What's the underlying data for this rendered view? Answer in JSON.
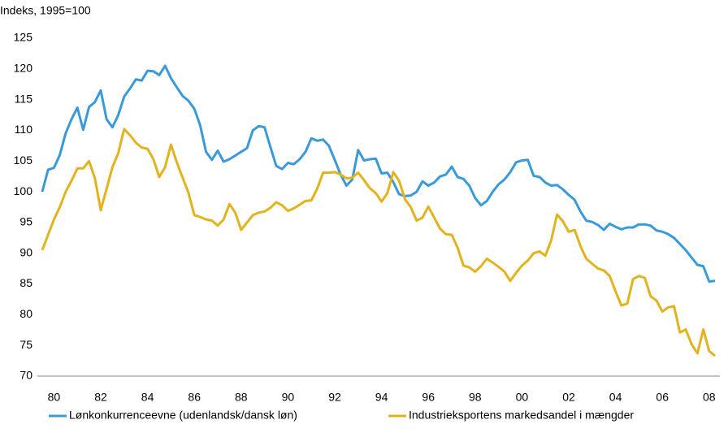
{
  "chart_data": {
    "type": "line",
    "title": "Indeks, 1995=100",
    "categories": [
      null,
      null,
      "80",
      null,
      null,
      null,
      null,
      null,
      null,
      null,
      "82",
      null,
      null,
      null,
      null,
      null,
      null,
      null,
      "84",
      null,
      null,
      null,
      null,
      null,
      null,
      null,
      "86",
      null,
      null,
      null,
      null,
      null,
      null,
      null,
      "88",
      null,
      null,
      null,
      null,
      null,
      null,
      null,
      "90",
      null,
      null,
      null,
      null,
      null,
      null,
      null,
      "92",
      null,
      null,
      null,
      null,
      null,
      null,
      null,
      "94",
      null,
      null,
      null,
      null,
      null,
      null,
      null,
      "96",
      null,
      null,
      null,
      null,
      null,
      null,
      null,
      "98",
      null,
      null,
      null,
      null,
      null,
      null,
      null,
      "00",
      null,
      null,
      null,
      null,
      null,
      null,
      null,
      "02",
      null,
      null,
      null,
      null,
      null,
      null,
      null,
      "04",
      null,
      null,
      null,
      null,
      null,
      null,
      null,
      "06",
      null,
      null,
      null,
      null,
      null,
      null,
      null,
      "08",
      null
    ],
    "series": [
      {
        "name": "Lønkonkurrenceevne (udenlandsk/dansk løn)",
        "color": "#3a9ad9",
        "values": [
          100,
          103.6,
          103.9,
          106,
          109.5,
          111.8,
          113.7,
          110.1,
          113.8,
          114.6,
          116.5,
          111.8,
          110.5,
          112.5,
          115.5,
          116.8,
          118.3,
          118.1,
          119.7,
          119.6,
          119,
          120.5,
          118.5,
          117,
          115.6,
          114.8,
          113.5,
          110.8,
          106.5,
          105.2,
          106.7,
          104.9,
          105.3,
          105.9,
          106.5,
          107.1,
          110,
          110.7,
          110.5,
          107.3,
          104.2,
          103.7,
          104.7,
          104.5,
          105.3,
          106.5,
          108.7,
          108.3,
          108.5,
          107.5,
          105.2,
          102.8,
          101,
          102,
          106.8,
          105.1,
          105.3,
          105.4,
          103,
          103.1,
          101.6,
          99.6,
          99.3,
          99.4,
          100,
          101.7,
          101,
          101.5,
          102.5,
          102.8,
          104.1,
          102.4,
          102.1,
          101,
          99,
          97.8,
          98.5,
          100,
          101.2,
          102,
          103.2,
          104.8,
          105.1,
          105.2,
          102.6,
          102.4,
          101.5,
          101,
          101.1,
          100.4,
          99.5,
          98.7,
          96.8,
          95.3,
          95.1,
          94.6,
          93.8,
          94.8,
          94.3,
          93.9,
          94.2,
          94.2,
          94.7,
          94.7,
          94.5,
          93.7,
          93.5,
          93.1,
          92.5,
          91.5,
          90.5,
          89.3,
          88.1,
          87.9,
          85.4,
          85.5
        ]
      },
      {
        "name": "Industrieksportens markedsandel i mængder",
        "color": "#e3b31e",
        "values": [
          90.5,
          93,
          95.5,
          97.5,
          100,
          101.8,
          103.8,
          103.8,
          105,
          102.2,
          97,
          100.5,
          104,
          106.3,
          110.2,
          109.2,
          108,
          107.2,
          107,
          105.3,
          102.4,
          104,
          107.7,
          104.8,
          102.3,
          99.8,
          96.2,
          95.9,
          95.5,
          95.3,
          94.5,
          95.5,
          98,
          96.6,
          93.8,
          95,
          96.2,
          96.6,
          96.8,
          97.4,
          98.3,
          97.8,
          96.9,
          97.3,
          97.9,
          98.5,
          98.6,
          100.5,
          103.1,
          103.1,
          103.2,
          102.8,
          102.2,
          102.3,
          103.1,
          101.9,
          100.6,
          99.8,
          98.4,
          99.8,
          103.2,
          101.8,
          98.8,
          97.5,
          95.3,
          95.8,
          97.6,
          95.8,
          94,
          93.1,
          93,
          90.9,
          88,
          87.7,
          87,
          87.9,
          89.1,
          88.5,
          87.8,
          87,
          85.5,
          86.8,
          88,
          88.8,
          90,
          90.3,
          89.6,
          92.1,
          96.3,
          95.2,
          93.5,
          93.8,
          91.2,
          89.1,
          88.3,
          87.5,
          87.2,
          86.3,
          83.8,
          81.5,
          81.8,
          85.8,
          86.3,
          86,
          83,
          82.3,
          80.5,
          81.2,
          81.4,
          77.1,
          77.6,
          75.2,
          73.7,
          77.6,
          74.1,
          73.3
        ]
      }
    ],
    "ylim": [
      70,
      125
    ],
    "yticks": [
      70,
      75,
      80,
      85,
      90,
      95,
      100,
      105,
      110,
      115,
      120,
      125
    ],
    "grid": false,
    "legend": "bottom"
  }
}
